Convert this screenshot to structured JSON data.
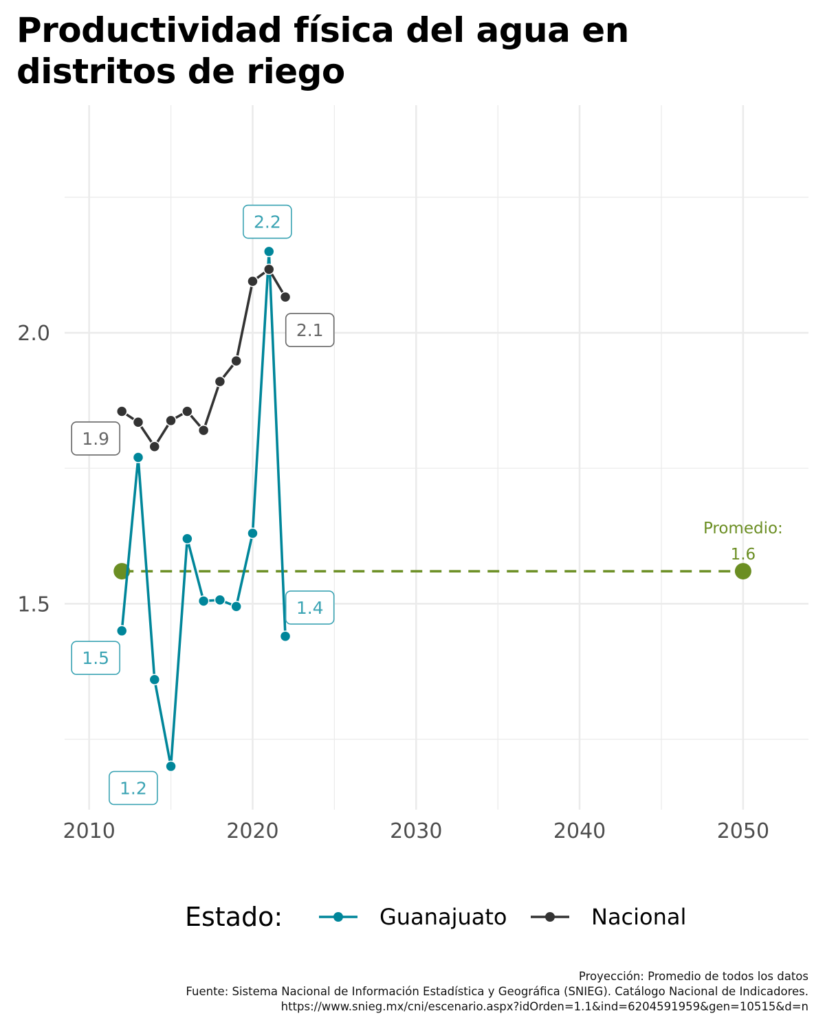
{
  "title_lines": [
    "Productividad física del agua en",
    "distritos de riego"
  ],
  "caption_lines": [
    "Proyección: Promedio de todos los datos",
    "Fuente: Sistema Nacional de Información Estadística y Geográfica (SNIEG). Catálogo Nacional de Indicadores.",
    "https://www.snieg.mx/cni/escenario.aspx?idOrden=1.1&ind=6204591959&gen=10515&d=n"
  ],
  "colors": {
    "guanajuato": "#00869a",
    "nacional": "#333333",
    "promedio": "#6b8e23",
    "grid": "#ebebeb",
    "axis_text": "#4d4d4d"
  },
  "chart_data": {
    "type": "line",
    "xlim": [
      2008.5,
      2054
    ],
    "ylim": [
      1.12,
      2.42
    ],
    "x_ticks": [
      2010,
      2020,
      2030,
      2040,
      2050
    ],
    "x_tick_labels": [
      "2010",
      "2020",
      "2030",
      "2040",
      "2050"
    ],
    "y_ticks": [
      1.5,
      2.0
    ],
    "y_tick_labels": [
      "1.5",
      "2.0"
    ],
    "y_minor_ticks": [
      1.25,
      1.75,
      2.25
    ],
    "x_minor_ticks": [
      2015,
      2025,
      2035,
      2045
    ],
    "grid": true,
    "legend": {
      "title": "Estado:",
      "position": "bottom",
      "entries": [
        "Guanajuato",
        "Nacional"
      ]
    },
    "series": [
      {
        "name": "Guanajuato",
        "color": "#00869a",
        "x": [
          2012,
          2013,
          2014,
          2015,
          2016,
          2017,
          2018,
          2019,
          2020,
          2021,
          2022
        ],
        "y": [
          1.45,
          1.77,
          1.36,
          1.2,
          1.62,
          1.505,
          1.507,
          1.495,
          1.63,
          2.15,
          1.44
        ]
      },
      {
        "name": "Nacional",
        "color": "#333333",
        "x": [
          2012,
          2013,
          2014,
          2015,
          2016,
          2017,
          2018,
          2019,
          2020,
          2021,
          2022
        ],
        "y": [
          1.855,
          1.835,
          1.79,
          1.838,
          1.855,
          1.82,
          1.91,
          1.948,
          2.095,
          2.117,
          2.066
        ]
      }
    ],
    "projection": {
      "label_line1": "Promedio:",
      "label_line2": "1.6",
      "x": [
        2012,
        2050
      ],
      "y": [
        1.56,
        1.56
      ]
    },
    "annotations": [
      {
        "text": "1.9",
        "x": 2010.4,
        "y": 1.805,
        "series": "Nacional"
      },
      {
        "text": "2.1",
        "x": 2023.5,
        "y": 2.005,
        "series": "Nacional"
      },
      {
        "text": "2.2",
        "x": 2020.9,
        "y": 2.205,
        "series": "Guanajuato"
      },
      {
        "text": "1.5",
        "x": 2010.4,
        "y": 1.4,
        "series": "Guanajuato"
      },
      {
        "text": "1.2",
        "x": 2012.7,
        "y": 1.16,
        "series": "Guanajuato"
      },
      {
        "text": "1.4",
        "x": 2023.5,
        "y": 1.493,
        "series": "Guanajuato"
      }
    ]
  }
}
